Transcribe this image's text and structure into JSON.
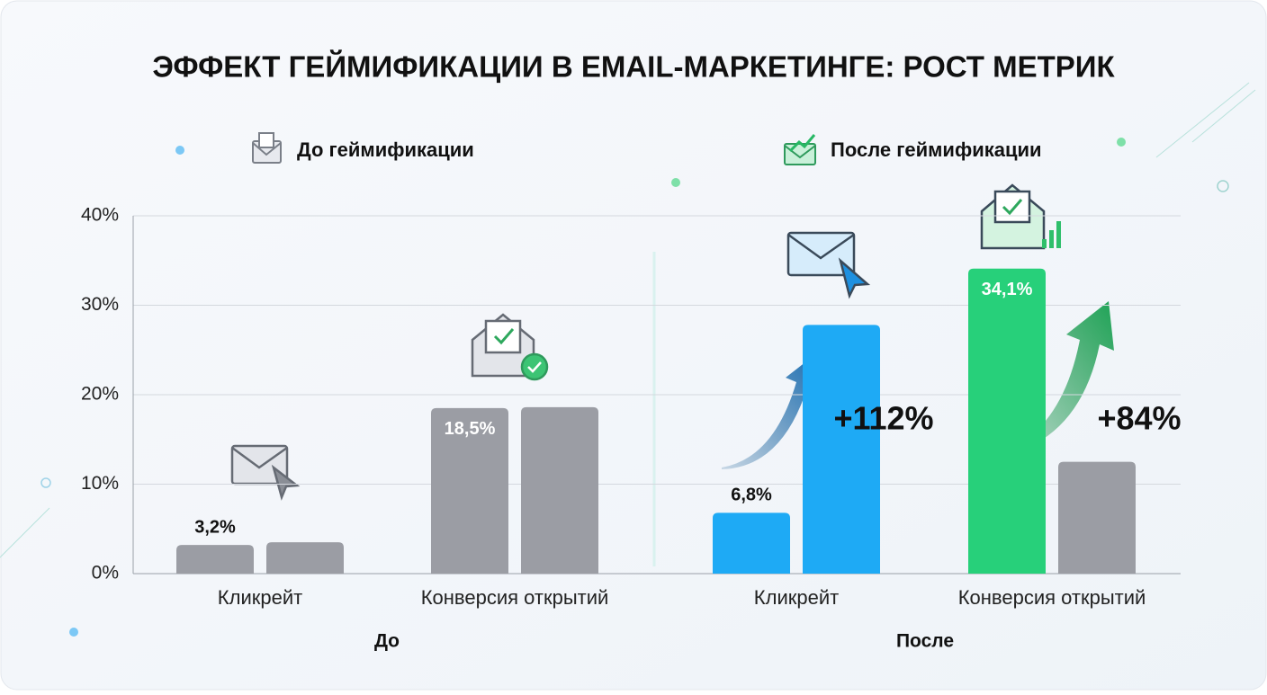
{
  "chart_data": {
    "type": "bar",
    "title": "ЭФФЕКТ ГЕЙМИФИКАЦИИ В EMAIL-МАРКЕТИНГЕ: РОСТ МЕТРИК",
    "legend": [
      {
        "name": "До геймификации"
      },
      {
        "name": "После геймификации"
      }
    ],
    "ylim": [
      0,
      40
    ],
    "yticks": [
      {
        "value": 0,
        "label": "0%"
      },
      {
        "value": 10,
        "label": "10%"
      },
      {
        "value": 20,
        "label": "20%"
      },
      {
        "value": 30,
        "label": "30%"
      },
      {
        "value": 40,
        "label": "40%"
      }
    ],
    "grid": true,
    "groups": [
      {
        "name": "До",
        "categories": [
          {
            "name": "Кликрейт",
            "bars": [
              {
                "value": 3.2,
                "value_label": "3,2%",
                "color": "#9b9da4"
              },
              {
                "value": 3.5,
                "color": "#9b9da4"
              }
            ]
          },
          {
            "name": "Конверсия открытий",
            "bars": [
              {
                "value": 18.5,
                "value_label": "18,5%",
                "color": "#9b9da4"
              },
              {
                "value": 18.6,
                "color": "#9b9da4"
              }
            ]
          }
        ]
      },
      {
        "name": "После",
        "categories": [
          {
            "name": "Кликрейт",
            "change_label": "+112%",
            "bars": [
              {
                "value": 6.8,
                "value_label": "6,8%",
                "color": "#1eaaf5"
              },
              {
                "value": 27.8,
                "color": "#1eaaf5"
              }
            ]
          },
          {
            "name": "Конверсия открытий",
            "change_label": "+84%",
            "bars": [
              {
                "value": 34.1,
                "value_label": "34,1%",
                "color": "#27d07a"
              },
              {
                "value": 12.5,
                "color": "#9b9da4"
              }
            ]
          }
        ]
      }
    ]
  }
}
